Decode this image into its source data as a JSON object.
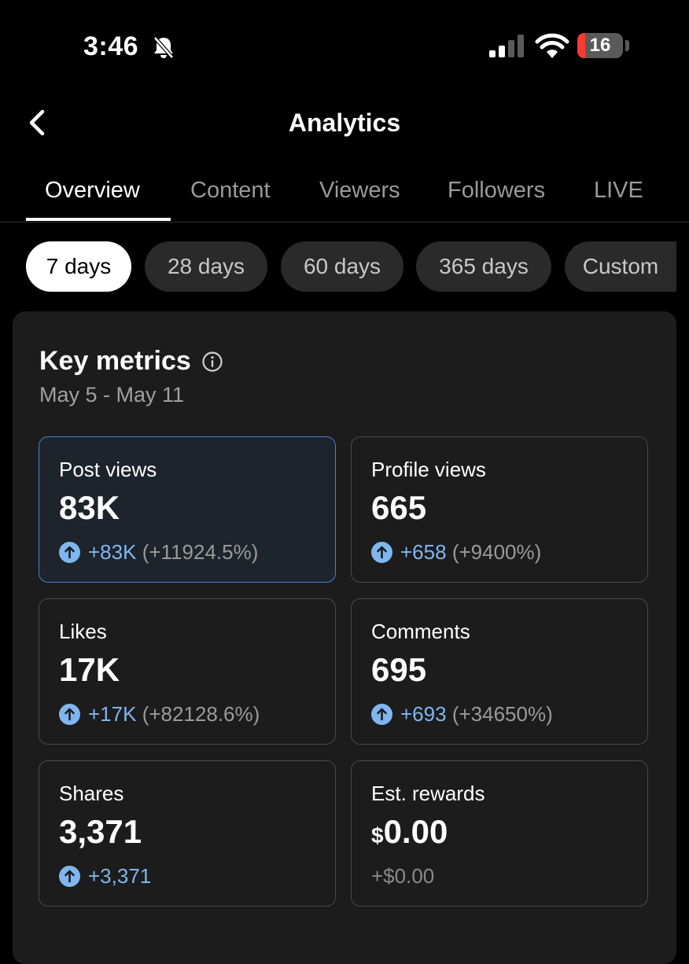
{
  "status_bar": {
    "time": "3:46",
    "battery_level": "16",
    "icons": [
      "bell-slash-icon",
      "signal-icon",
      "wifi-icon",
      "battery-icon"
    ]
  },
  "header": {
    "title": "Analytics",
    "back_icon": "chevron-left-icon"
  },
  "tabs": [
    {
      "label": "Overview",
      "active": true
    },
    {
      "label": "Content",
      "active": false
    },
    {
      "label": "Viewers",
      "active": false
    },
    {
      "label": "Followers",
      "active": false
    },
    {
      "label": "LIVE",
      "active": false
    }
  ],
  "ranges": [
    {
      "label": "7 days",
      "active": true
    },
    {
      "label": "28 days",
      "active": false
    },
    {
      "label": "60 days",
      "active": false
    },
    {
      "label": "365 days",
      "active": false
    },
    {
      "label": "Custom",
      "active": false
    }
  ],
  "key_metrics": {
    "title": "Key metrics",
    "info_icon": "info-icon",
    "date_range": "May 5 - May 11",
    "metrics": [
      {
        "label": "Post views",
        "value": "83K",
        "delta": "+83K",
        "pct": "(+11924.5%)",
        "selected": true
      },
      {
        "label": "Profile views",
        "value": "665",
        "delta": "+658",
        "pct": "(+9400%)"
      },
      {
        "label": "Likes",
        "value": "17K",
        "delta": "+17K",
        "pct": "(+82128.6%)"
      },
      {
        "label": "Comments",
        "value": "695",
        "delta": "+693",
        "pct": "(+34650%)"
      },
      {
        "label": "Shares",
        "value": "3,371",
        "delta": "+3,371",
        "pct": ""
      },
      {
        "label": "Est. rewards",
        "currency": "$",
        "value": "0.00",
        "delta": "+$0.00"
      }
    ]
  },
  "colors": {
    "background": "#000000",
    "card": "#1c1c1c",
    "accent_blue": "#7fb6f0",
    "selected_border": "#3c84d8",
    "battery_low": "#ff3b30"
  }
}
